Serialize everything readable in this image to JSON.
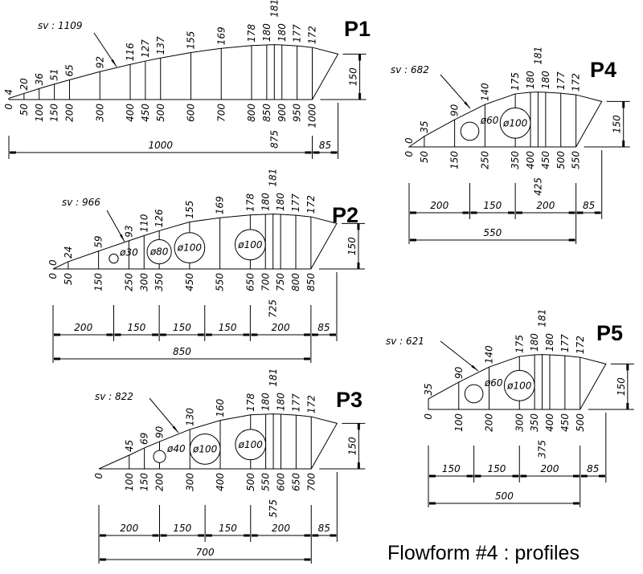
{
  "title": "Flowform #4 : profiles",
  "profiles": [
    {
      "name": "P1",
      "sv": "sv : 1109",
      "stations": [
        {
          "x": 0,
          "h": 4
        },
        {
          "x": 50,
          "h": 20
        },
        {
          "x": 100,
          "h": 36
        },
        {
          "x": 150,
          "h": 51
        },
        {
          "x": 200,
          "h": 65
        },
        {
          "x": 300,
          "h": 92
        },
        {
          "x": 400,
          "h": 116
        },
        {
          "x": 450,
          "h": 127
        },
        {
          "x": 500,
          "h": 137
        },
        {
          "x": 600,
          "h": 155
        },
        {
          "x": 700,
          "h": 169
        },
        {
          "x": 800,
          "h": 178
        },
        {
          "x": 850,
          "h": 180
        },
        {
          "x": 875,
          "h": 181
        },
        {
          "x": 900,
          "h": 180
        },
        {
          "x": 950,
          "h": 177
        },
        {
          "x": 1000,
          "h": 172
        }
      ],
      "holes": [],
      "dims": {
        "chain": [
          1000
        ],
        "overhang": 85,
        "total": null,
        "height": 150
      }
    },
    {
      "name": "P2",
      "sv": "sv : 966",
      "stations": [
        {
          "x": 0,
          "h": 0
        },
        {
          "x": 50,
          "h": 24
        },
        {
          "x": 150,
          "h": 59
        },
        {
          "x": 250,
          "h": 93
        },
        {
          "x": 300,
          "h": 110
        },
        {
          "x": 350,
          "h": 126
        },
        {
          "x": 450,
          "h": 155
        },
        {
          "x": 550,
          "h": 169
        },
        {
          "x": 650,
          "h": 178
        },
        {
          "x": 700,
          "h": 180
        },
        {
          "x": 725,
          "h": 181
        },
        {
          "x": 750,
          "h": 180
        },
        {
          "x": 800,
          "h": 177
        },
        {
          "x": 850,
          "h": 172
        }
      ],
      "holes": [
        {
          "x": 200,
          "d": 30,
          "label": "ø30"
        },
        {
          "x": 350,
          "d": 80,
          "label": "ø80"
        },
        {
          "x": 450,
          "d": 100,
          "label": "ø100"
        },
        {
          "x": 650,
          "d": 100,
          "label": "ø100"
        }
      ],
      "dims": {
        "chain": [
          200,
          150,
          150,
          150,
          200
        ],
        "overhang": 85,
        "total": 850,
        "height": 150
      }
    },
    {
      "name": "P3",
      "sv": "sv : 822",
      "stations": [
        {
          "x": 0,
          "h": 0,
          "hide_h": true
        },
        {
          "x": 100,
          "h": 45
        },
        {
          "x": 150,
          "h": 69
        },
        {
          "x": 200,
          "h": 90
        },
        {
          "x": 300,
          "h": 130
        },
        {
          "x": 400,
          "h": 160
        },
        {
          "x": 500,
          "h": 178
        },
        {
          "x": 550,
          "h": 180
        },
        {
          "x": 575,
          "h": 181
        },
        {
          "x": 600,
          "h": 180
        },
        {
          "x": 650,
          "h": 177
        },
        {
          "x": 700,
          "h": 172
        }
      ],
      "holes": [
        {
          "x": 200,
          "d": 40,
          "label": "ø40"
        },
        {
          "x": 350,
          "d": 100,
          "label": "ø100"
        },
        {
          "x": 500,
          "d": 100,
          "label": "ø100"
        }
      ],
      "dims": {
        "chain": [
          200,
          150,
          150,
          200
        ],
        "overhang": 85,
        "total": 700,
        "height": 150
      }
    },
    {
      "name": "P4",
      "sv": "sv : 682",
      "stations": [
        {
          "x": 0,
          "h": 0
        },
        {
          "x": 50,
          "h": 35
        },
        {
          "x": 150,
          "h": 90
        },
        {
          "x": 250,
          "h": 140
        },
        {
          "x": 350,
          "h": 175
        },
        {
          "x": 400,
          "h": 180
        },
        {
          "x": 425,
          "h": 181
        },
        {
          "x": 450,
          "h": 180
        },
        {
          "x": 500,
          "h": 177
        },
        {
          "x": 550,
          "h": 172
        }
      ],
      "holes": [
        {
          "x": 200,
          "d": 60,
          "label": "ø60"
        },
        {
          "x": 350,
          "d": 100,
          "label": "ø100"
        }
      ],
      "dims": {
        "chain": [
          200,
          150,
          200
        ],
        "overhang": 85,
        "total": 550,
        "height": 150
      }
    },
    {
      "name": "P5",
      "sv": "sv : 621",
      "stations": [
        {
          "x": 0,
          "h": 35
        },
        {
          "x": 100,
          "h": 90
        },
        {
          "x": 200,
          "h": 140
        },
        {
          "x": 300,
          "h": 175
        },
        {
          "x": 350,
          "h": 180
        },
        {
          "x": 375,
          "h": 181
        },
        {
          "x": 400,
          "h": 180
        },
        {
          "x": 450,
          "h": 177
        },
        {
          "x": 500,
          "h": 172
        }
      ],
      "holes": [
        {
          "x": 150,
          "d": 60,
          "label": "ø60"
        },
        {
          "x": 300,
          "d": 100,
          "label": "ø100"
        }
      ],
      "dims": {
        "chain": [
          150,
          150,
          200
        ],
        "overhang": 85,
        "total": 500,
        "height": 150
      }
    }
  ]
}
